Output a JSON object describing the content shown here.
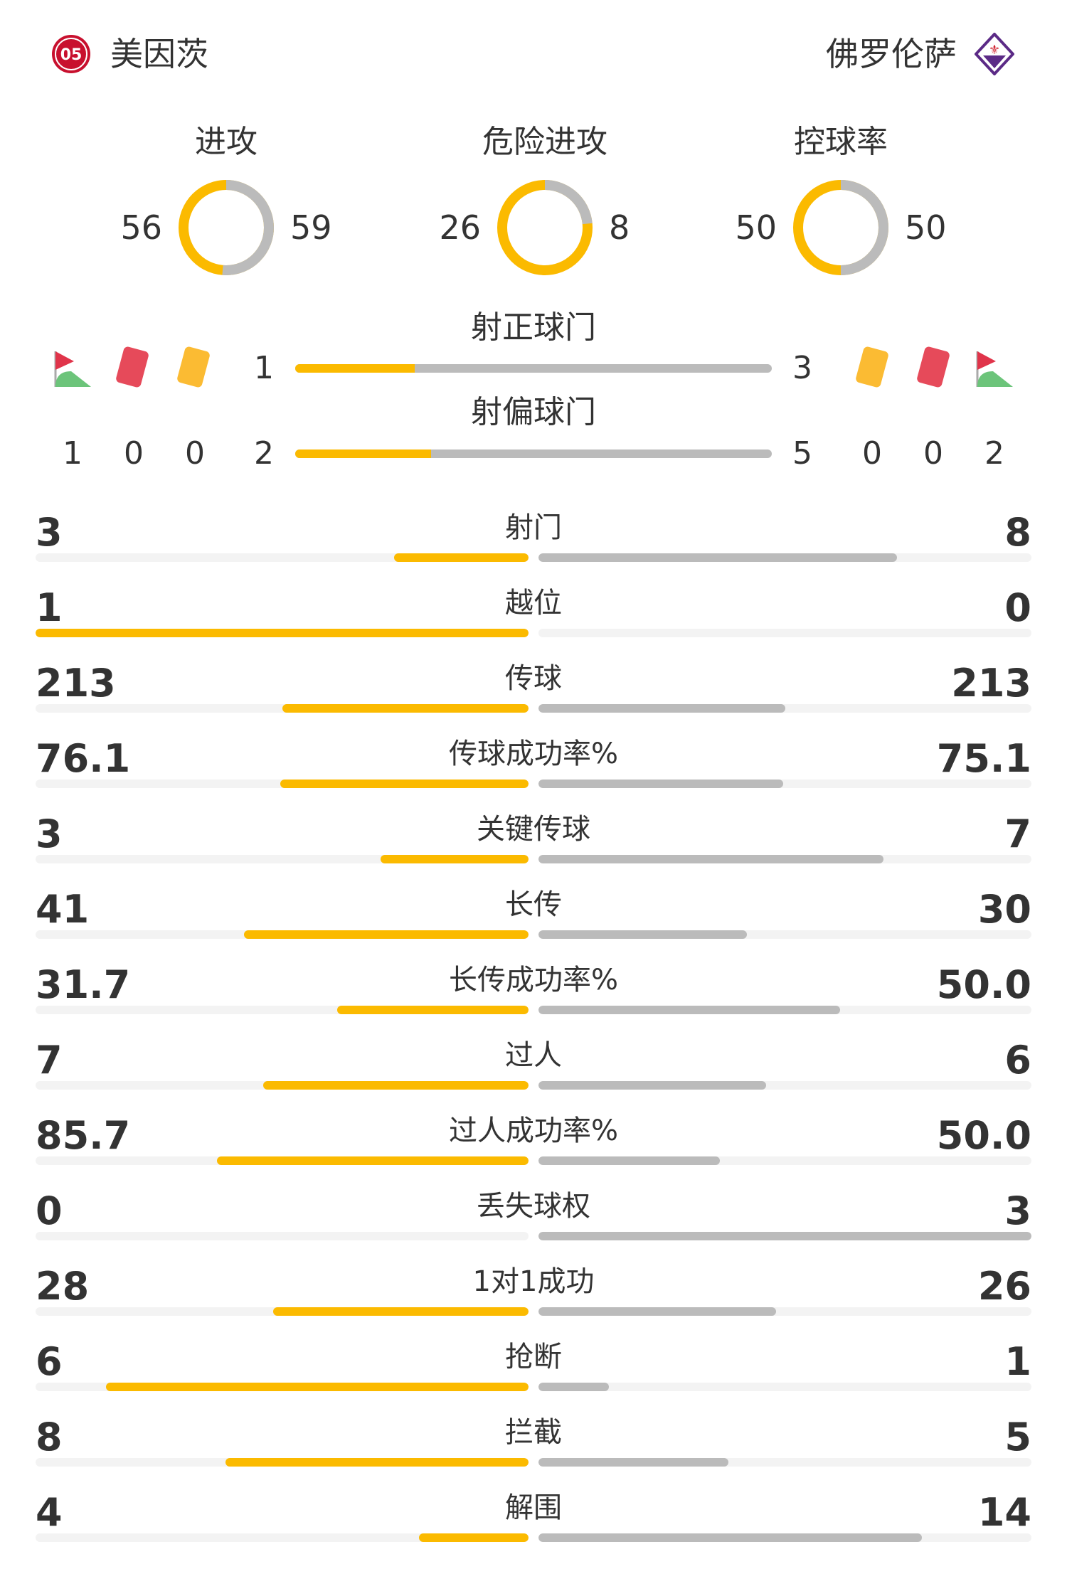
{
  "home": {
    "name": "美因茨",
    "logo_text": "05",
    "color": "#c8102e"
  },
  "away": {
    "name": "佛罗伦萨",
    "logo_color": "#5b2a86"
  },
  "colors": {
    "home": "#fbba00",
    "away": "#bbbbbb",
    "track": "#f3f3f3"
  },
  "donuts": [
    {
      "label": "进攻",
      "home": 56,
      "away": 59
    },
    {
      "label": "危险进攻",
      "home": 26,
      "away": 8
    },
    {
      "label": "控球率",
      "home": 50,
      "away": 50
    }
  ],
  "shots_on": {
    "label": "射正球门",
    "home": 1,
    "away": 3
  },
  "shots_off": {
    "label": "射偏球门",
    "home": 2,
    "away": 5
  },
  "discipline": {
    "home": {
      "corners": 1,
      "red": 0,
      "yellow": 0
    },
    "away": {
      "yellow": 0,
      "red": 0,
      "corners": 2
    },
    "icons": [
      "corner-flag-icon",
      "red-card-icon",
      "yellow-card-icon"
    ]
  },
  "stats": [
    {
      "label": "射门",
      "home": "3",
      "away": "8"
    },
    {
      "label": "越位",
      "home": "1",
      "away": "0"
    },
    {
      "label": "传球",
      "home": "213",
      "away": "213"
    },
    {
      "label": "传球成功率%",
      "home": "76.1",
      "away": "75.1"
    },
    {
      "label": "关键传球",
      "home": "3",
      "away": "7"
    },
    {
      "label": "长传",
      "home": "41",
      "away": "30"
    },
    {
      "label": "长传成功率%",
      "home": "31.7",
      "away": "50.0"
    },
    {
      "label": "过人",
      "home": "7",
      "away": "6"
    },
    {
      "label": "过人成功率%",
      "home": "85.7",
      "away": "50.0"
    },
    {
      "label": "丢失球权",
      "home": "0",
      "away": "3"
    },
    {
      "label": "1对1成功",
      "home": "28",
      "away": "26"
    },
    {
      "label": "抢断",
      "home": "6",
      "away": "1"
    },
    {
      "label": "拦截",
      "home": "8",
      "away": "5"
    },
    {
      "label": "解围",
      "home": "4",
      "away": "14"
    }
  ]
}
